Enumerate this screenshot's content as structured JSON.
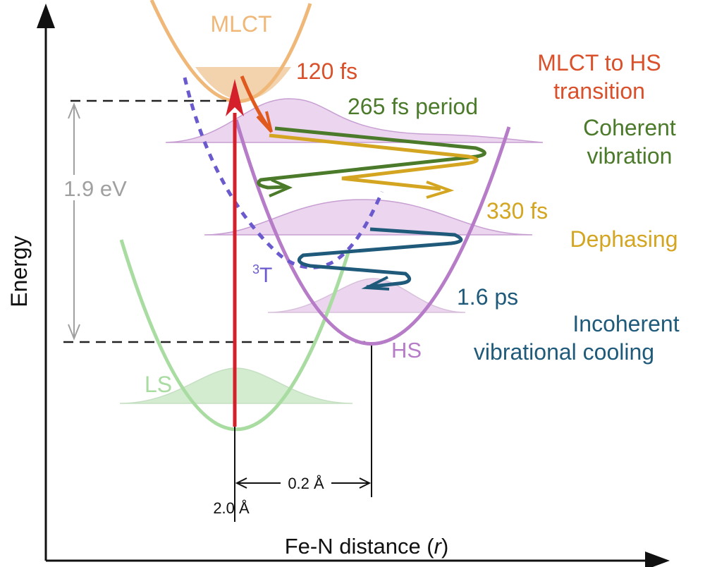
{
  "axes": {
    "y_label": "Energy",
    "x_label_prefix": "Fe-N distance (",
    "x_label_var": "r",
    "x_label_suffix": ")"
  },
  "states": {
    "mlct": "MLCT",
    "ls": "LS",
    "hs": "HS",
    "triplet_sup": "3",
    "triplet": "T"
  },
  "energy_gap": "1.9 eV",
  "distance": {
    "delta": "0.2 Å",
    "origin": "2.0 Å"
  },
  "annotations": {
    "t120": "120 fs",
    "mlct_hs_1": "MLCT to HS",
    "mlct_hs_2": "transition",
    "t265": "265 fs period",
    "coherent_1": "Coherent",
    "coherent_2": "vibration",
    "t330": "330 fs",
    "dephasing": "Dephasing",
    "t16": "1.6 ps",
    "incoherent_1": "Incoherent",
    "incoherent_2": "vibrational cooling"
  },
  "colors": {
    "mlct": "#f0b878",
    "ls": "#a8dca0",
    "hs": "#b77cc8",
    "triplet": "#6a5acd",
    "excitation": "#d4202a",
    "transition": "#d9502a",
    "coherent": "#4a7a2a",
    "dephasing": "#d4a520",
    "cooling": "#1f5a7a",
    "gap": "#a0a0a0"
  }
}
